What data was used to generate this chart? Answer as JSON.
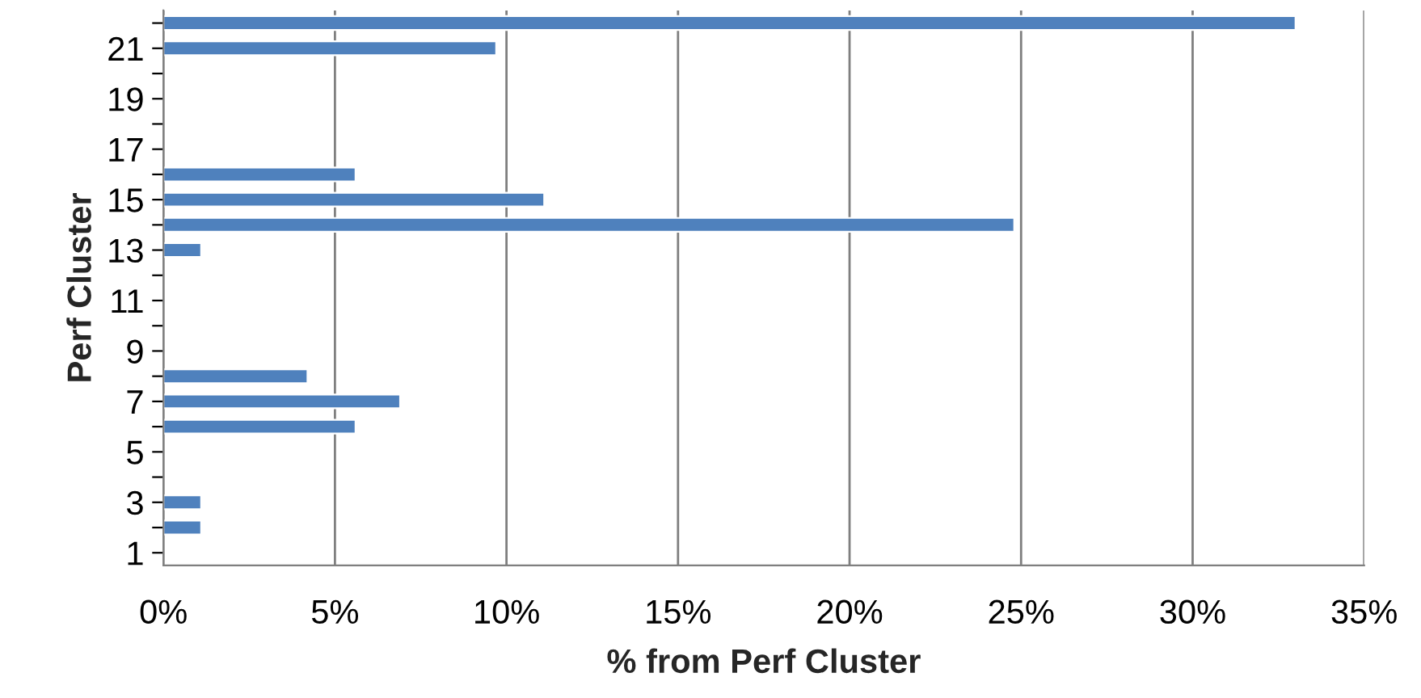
{
  "chart_data": {
    "type": "bar",
    "orientation": "horizontal",
    "xlabel": "% from Perf Cluster",
    "ylabel": "Perf Cluster",
    "categories": [
      null,
      "21",
      null,
      "19",
      null,
      "17",
      null,
      "15",
      null,
      "13",
      null,
      "11",
      null,
      "9",
      null,
      "7",
      null,
      "5",
      null,
      "3",
      null,
      "1"
    ],
    "values": [
      33,
      9.7,
      null,
      null,
      null,
      null,
      5.6,
      11.1,
      24.8,
      1.1,
      null,
      null,
      null,
      null,
      4.2,
      6.9,
      5.6,
      null,
      null,
      1.1,
      1.1,
      null
    ],
    "color": "#4f81bd",
    "xlim": [
      0,
      35
    ],
    "xticks": [
      {
        "value": 0,
        "label": "0%"
      },
      {
        "value": 5,
        "label": "5%"
      },
      {
        "value": 10,
        "label": "10%"
      },
      {
        "value": 15,
        "label": "15%"
      },
      {
        "value": 20,
        "label": "20%"
      },
      {
        "value": 25,
        "label": "25%"
      },
      {
        "value": 30,
        "label": "30%"
      },
      {
        "value": 35,
        "label": "35%"
      }
    ],
    "grid": "x"
  }
}
